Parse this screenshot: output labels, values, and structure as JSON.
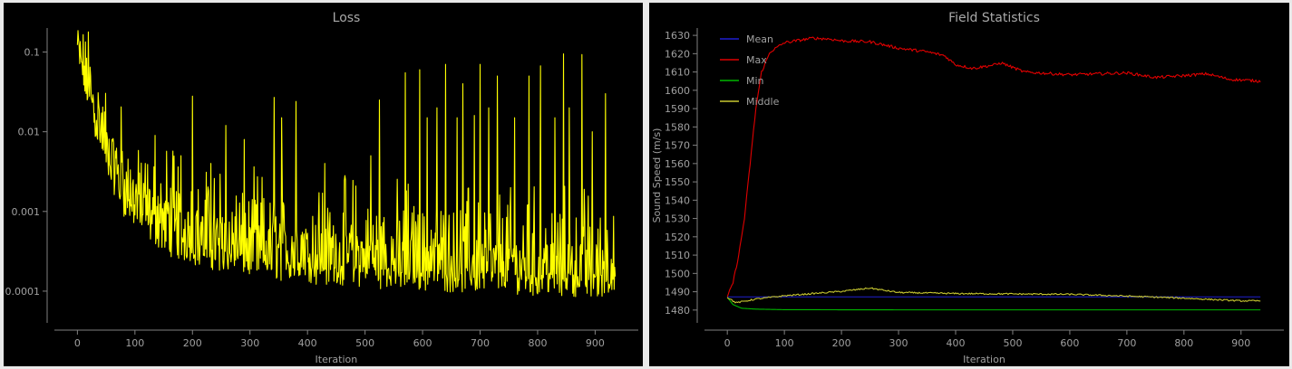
{
  "colors": {
    "background": "#000000",
    "axis": "#808080",
    "title_text": "#a8a8a8",
    "label_text": "#a0a0a0",
    "loss_line": "#ffff00",
    "mean": "#1f1fd0",
    "max": "#e00000",
    "min": "#00b800",
    "middle": "#c8c830"
  },
  "chart_data": [
    {
      "type": "line",
      "title": "Loss",
      "xlabel": "Iteration",
      "ylabel": "",
      "yscale": "log",
      "xlim": [
        -40,
        975
      ],
      "ylim": [
        4e-05,
        0.2
      ],
      "xticks": [
        0,
        100,
        200,
        300,
        400,
        500,
        600,
        700,
        800,
        900
      ],
      "yticks": [
        0.0001,
        0.001,
        0.01,
        0.1
      ],
      "ytick_labels": [
        "0.0001",
        "0.001",
        "0.01",
        "0.1"
      ],
      "grid": false,
      "series": [
        {
          "color": "#ffff00",
          "x_range": [
            0,
            935
          ],
          "baseline_trend": [
            [
              0,
              0.09
            ],
            [
              20,
              0.03
            ],
            [
              50,
              0.005
            ],
            [
              80,
              0.0016
            ],
            [
              120,
              0.0008
            ],
            [
              160,
              0.0005
            ],
            [
              200,
              0.00038
            ],
            [
              300,
              0.00027
            ],
            [
              400,
              0.00022
            ],
            [
              500,
              0.0002
            ],
            [
              600,
              0.00018
            ],
            [
              700,
              0.00017
            ],
            [
              800,
              0.00016
            ],
            [
              935,
              0.00015
            ]
          ],
          "spikes": [
            {
              "x": 3,
              "y": 0.12
            },
            {
              "x": 25,
              "y": 0.025
            },
            {
              "x": 60,
              "y": 0.008
            },
            {
              "x": 118,
              "y": 0.004
            },
            {
              "x": 135,
              "y": 0.009
            },
            {
              "x": 158,
              "y": 0.0013
            },
            {
              "x": 180,
              "y": 0.005
            },
            {
              "x": 200,
              "y": 0.028
            },
            {
              "x": 232,
              "y": 0.004
            },
            {
              "x": 258,
              "y": 0.012
            },
            {
              "x": 290,
              "y": 0.008
            },
            {
              "x": 342,
              "y": 0.027
            },
            {
              "x": 355,
              "y": 0.015
            },
            {
              "x": 380,
              "y": 0.024
            },
            {
              "x": 430,
              "y": 0.004
            },
            {
              "x": 466,
              "y": 0.0025
            },
            {
              "x": 510,
              "y": 0.005
            },
            {
              "x": 525,
              "y": 0.025
            },
            {
              "x": 570,
              "y": 0.055
            },
            {
              "x": 595,
              "y": 0.06
            },
            {
              "x": 608,
              "y": 0.015
            },
            {
              "x": 625,
              "y": 0.02
            },
            {
              "x": 640,
              "y": 0.07
            },
            {
              "x": 660,
              "y": 0.015
            },
            {
              "x": 670,
              "y": 0.04
            },
            {
              "x": 690,
              "y": 0.016
            },
            {
              "x": 700,
              "y": 0.07
            },
            {
              "x": 715,
              "y": 0.02
            },
            {
              "x": 730,
              "y": 0.05
            },
            {
              "x": 760,
              "y": 0.015
            },
            {
              "x": 785,
              "y": 0.05
            },
            {
              "x": 805,
              "y": 0.067
            },
            {
              "x": 830,
              "y": 0.015
            },
            {
              "x": 845,
              "y": 0.095
            },
            {
              "x": 855,
              "y": 0.02
            },
            {
              "x": 877,
              "y": 0.093
            },
            {
              "x": 895,
              "y": 0.01
            },
            {
              "x": 918,
              "y": 0.03
            }
          ]
        }
      ]
    },
    {
      "type": "line",
      "title": "Field Statistics",
      "xlabel": "Iteration",
      "ylabel": "Sound Speed (m/s)",
      "xlim": [
        -40,
        975
      ],
      "ylim": [
        1473,
        1634
      ],
      "xticks": [
        0,
        100,
        200,
        300,
        400,
        500,
        600,
        700,
        800,
        900
      ],
      "yticks": [
        1480,
        1490,
        1500,
        1510,
        1520,
        1530,
        1540,
        1550,
        1560,
        1570,
        1580,
        1590,
        1600,
        1610,
        1620,
        1630
      ],
      "grid": false,
      "legend": "top-left",
      "series": [
        {
          "name": "Mean",
          "color": "#1f1fd0",
          "noise": 0,
          "points": [
            [
              0,
              1487.2
            ],
            [
              100,
              1487.2
            ],
            [
              500,
              1487.2
            ],
            [
              935,
              1487.2
            ]
          ]
        },
        {
          "name": "Max",
          "color": "#e00000",
          "noise": 0.8,
          "points": [
            [
              0,
              1487
            ],
            [
              10,
              1495
            ],
            [
              20,
              1510
            ],
            [
              30,
              1530
            ],
            [
              40,
              1560
            ],
            [
              50,
              1590
            ],
            [
              60,
              1610
            ],
            [
              75,
              1621
            ],
            [
              100,
              1626
            ],
            [
              150,
              1628.5
            ],
            [
              180,
              1628
            ],
            [
              200,
              1627
            ],
            [
              250,
              1626.5
            ],
            [
              300,
              1623
            ],
            [
              350,
              1621
            ],
            [
              380,
              1619
            ],
            [
              400,
              1614
            ],
            [
              430,
              1612
            ],
            [
              470,
              1614
            ],
            [
              480,
              1615
            ],
            [
              520,
              1610
            ],
            [
              600,
              1608.5
            ],
            [
              650,
              1609
            ],
            [
              700,
              1609.5
            ],
            [
              750,
              1607
            ],
            [
              800,
              1608
            ],
            [
              840,
              1609
            ],
            [
              880,
              1606
            ],
            [
              935,
              1605
            ]
          ]
        },
        {
          "name": "Min",
          "color": "#00b800",
          "noise": 0,
          "points": [
            [
              0,
              1487
            ],
            [
              10,
              1483
            ],
            [
              25,
              1481
            ],
            [
              50,
              1480.5
            ],
            [
              100,
              1480.2
            ],
            [
              300,
              1480.1
            ],
            [
              935,
              1480.1
            ]
          ]
        },
        {
          "name": "Middle",
          "color": "#c8c830",
          "noise": 0.4,
          "points": [
            [
              0,
              1487
            ],
            [
              15,
              1484
            ],
            [
              25,
              1484.5
            ],
            [
              50,
              1486
            ],
            [
              100,
              1487.8
            ],
            [
              150,
              1489
            ],
            [
              200,
              1490.2
            ],
            [
              250,
              1492
            ],
            [
              270,
              1491
            ],
            [
              300,
              1489.6
            ],
            [
              400,
              1489
            ],
            [
              500,
              1488.8
            ],
            [
              600,
              1488.6
            ],
            [
              700,
              1487.6
            ],
            [
              800,
              1486.5
            ],
            [
              900,
              1485
            ],
            [
              935,
              1485
            ]
          ]
        }
      ]
    }
  ]
}
